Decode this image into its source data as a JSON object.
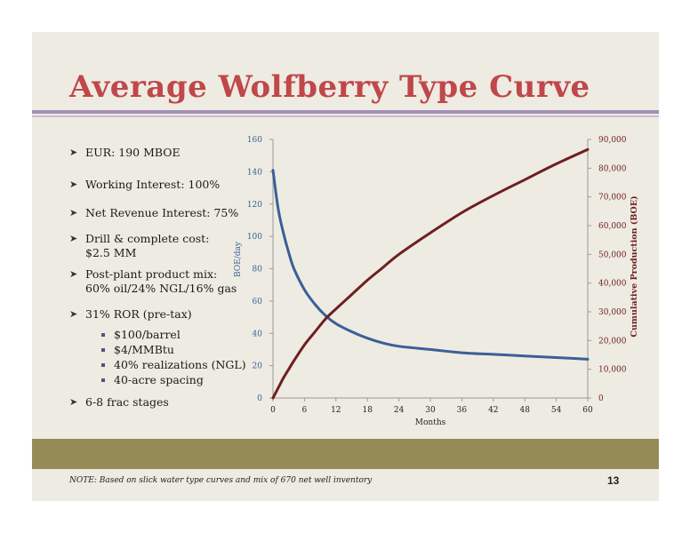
{
  "title": "Average Wolfberry Type Curve",
  "bullets": [
    {
      "lines": [
        "EUR: 190 MBOE"
      ]
    },
    {
      "lines": [
        "Working Interest: 100%"
      ]
    },
    {
      "lines": [
        "Net Revenue Interest: 75%"
      ]
    },
    {
      "lines": [
        "Drill & complete cost:",
        "$2.5 MM"
      ]
    },
    {
      "lines": [
        "Post-plant product mix:",
        "60% oil/24% NGL/16% gas"
      ]
    },
    {
      "lines": [
        "31% ROR (pre-tax)"
      ]
    },
    {
      "lines": [
        "6-8 frac stages"
      ]
    }
  ],
  "sub_bullets": [
    "$100/barrel",
    "$4/MMBtu",
    "40% realizations (NGL)",
    "40-acre spacing"
  ],
  "note": "NOTE: Based on slick water type curves and mix of 670 net well inventory",
  "page_number": "13",
  "colors": {
    "title": "#c0474a",
    "accent_rule": "#a48fb8",
    "footer_band": "#948b56",
    "series_rate": "#3a5f98",
    "series_cum": "#6e1f1f"
  },
  "chart_data": {
    "type": "line",
    "xlabel": "Months",
    "ylabel": "BOE/day",
    "y2label": "Cumulative Production (BOE)",
    "x_ticks": [
      "0",
      "6",
      "12",
      "18",
      "24",
      "30",
      "36",
      "42",
      "48",
      "54",
      "60"
    ],
    "y_ticks": [
      "0",
      "20",
      "40",
      "60",
      "80",
      "100",
      "120",
      "140",
      "160"
    ],
    "y2_ticks": [
      "0",
      "10,000",
      "20,000",
      "30,000",
      "40,000",
      "50,000",
      "60,000",
      "70,000",
      "80,000",
      "90,000"
    ],
    "xlim": [
      0,
      60
    ],
    "ylim": [
      0,
      160
    ],
    "y2lim": [
      0,
      90000
    ],
    "series": [
      {
        "axis": "left",
        "color": "#3a5f98",
        "x": [
          0,
          1,
          2,
          3,
          4,
          6,
          8,
          10,
          12,
          15,
          18,
          21,
          24,
          30,
          36,
          42,
          48,
          54,
          60
        ],
        "y": [
          141,
          117,
          102,
          90,
          80,
          67,
          58,
          51,
          46,
          41,
          37,
          34,
          32,
          30,
          28,
          27,
          26,
          25,
          24
        ]
      },
      {
        "axis": "right",
        "color": "#6e1f1f",
        "x": [
          0,
          1,
          2,
          3,
          4,
          6,
          8,
          10,
          12,
          15,
          18,
          21,
          24,
          30,
          36,
          42,
          48,
          54,
          60
        ],
        "y": [
          0,
          3500,
          7000,
          10000,
          13000,
          18500,
          23000,
          27500,
          31000,
          36000,
          41000,
          45500,
          50000,
          57500,
          64500,
          70500,
          76000,
          81500,
          86500
        ]
      }
    ]
  }
}
